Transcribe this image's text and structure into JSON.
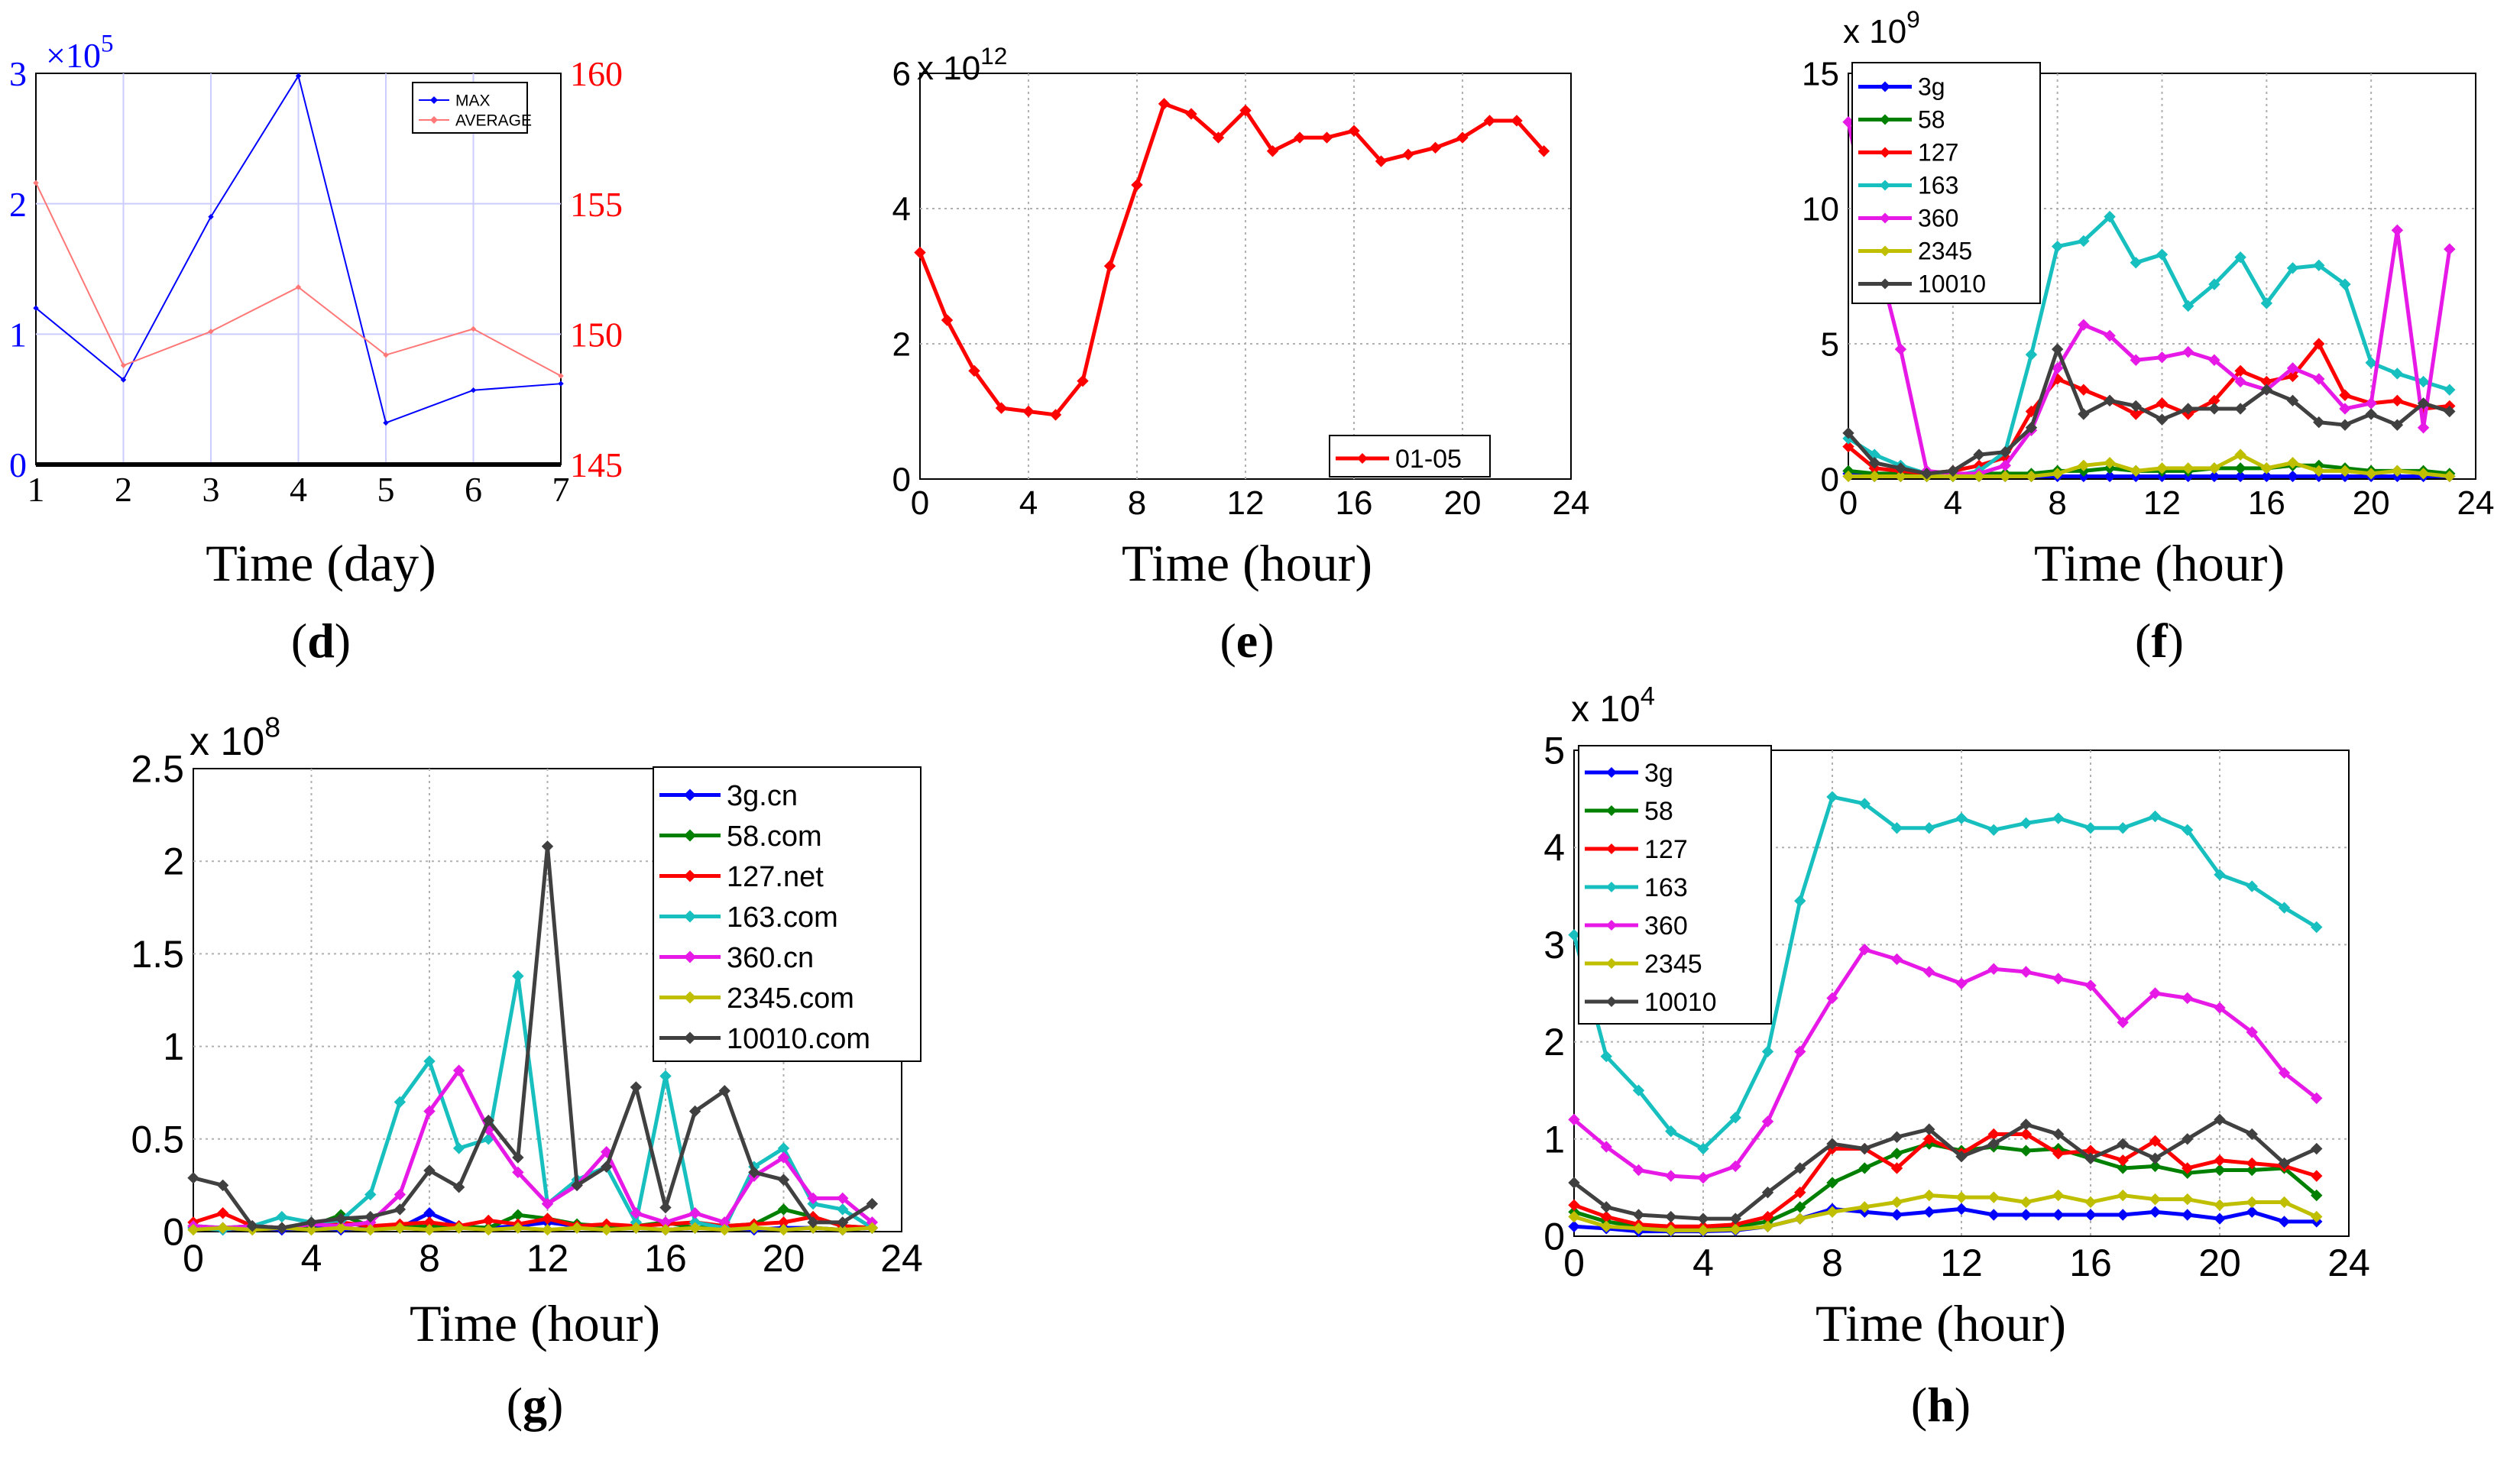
{
  "figure": {
    "panels": [
      {
        "id": "d",
        "letter": "d",
        "paren_open": "(",
        "paren_close": ")",
        "xcaption": "Time (day)"
      },
      {
        "id": "e",
        "letter": "e",
        "paren_open": "(",
        "paren_close": ")",
        "xcaption": "Time (hour)"
      },
      {
        "id": "f",
        "letter": "f",
        "paren_open": "(",
        "paren_close": ")",
        "xcaption": "Time (hour)"
      },
      {
        "id": "g",
        "letter": "g",
        "paren_open": "(",
        "paren_close": ")",
        "xcaption": "Time (hour)"
      },
      {
        "id": "h",
        "letter": "h",
        "paren_open": "(",
        "paren_close": ")",
        "xcaption": "Time (hour)"
      }
    ]
  },
  "colors": {
    "blue": "#0000ff",
    "green": "#008000",
    "red": "#ff0000",
    "cyan": "#17bfbf",
    "magenta": "#e619e6",
    "olive": "#bfbf00",
    "dark": "#404040",
    "avg_red": "#ff7777"
  },
  "chart_data": [
    {
      "id": "d",
      "type": "line",
      "x": [
        1,
        2,
        3,
        4,
        5,
        6,
        7
      ],
      "xlim": [
        1,
        7
      ],
      "xticks": [
        "1",
        "2",
        "3",
        "4",
        "5",
        "6",
        "7"
      ],
      "ylim_left": [
        0,
        3
      ],
      "yticks_left": [
        "0",
        "1",
        "2",
        "3"
      ],
      "left_multiplier": "×10",
      "left_exponent": "5",
      "ylim_right": [
        145,
        160
      ],
      "yticks_right": [
        "145",
        "150",
        "155",
        "160"
      ],
      "legend_position": "top-right",
      "grid": true,
      "series": [
        {
          "name": "MAX",
          "axis": "left",
          "color": "#0000ff",
          "values": [
            1.2,
            0.65,
            1.9,
            2.98,
            0.32,
            0.57,
            0.62
          ]
        },
        {
          "name": "AVERAGE",
          "axis": "right",
          "color": "#ff7777",
          "values": [
            155.8,
            148.8,
            150.1,
            151.8,
            149.2,
            150.2,
            148.4
          ]
        }
      ]
    },
    {
      "id": "e",
      "type": "line",
      "x": [
        0,
        1,
        2,
        3,
        4,
        5,
        6,
        7,
        8,
        9,
        10,
        11,
        12,
        13,
        14,
        15,
        16,
        17,
        18,
        19,
        20,
        21,
        22,
        23
      ],
      "xlim": [
        0,
        24
      ],
      "xticks": [
        "0",
        "4",
        "8",
        "12",
        "16",
        "20",
        "24"
      ],
      "ylim": [
        0,
        6
      ],
      "yticks": [
        "0",
        "2",
        "4",
        "6"
      ],
      "multiplier": "x 10",
      "exponent": "12",
      "legend_position": "bottom-right",
      "grid": true,
      "series": [
        {
          "name": "01-05",
          "color": "#ff0000",
          "values": [
            3.35,
            2.35,
            1.6,
            1.05,
            1.0,
            0.95,
            1.45,
            3.15,
            4.35,
            5.55,
            5.4,
            5.05,
            5.45,
            4.85,
            5.05,
            5.05,
            5.15,
            4.7,
            4.8,
            4.9,
            5.05,
            5.3,
            5.3,
            4.85
          ]
        }
      ]
    },
    {
      "id": "f",
      "type": "line",
      "x": [
        0,
        1,
        2,
        3,
        4,
        5,
        6,
        7,
        8,
        9,
        10,
        11,
        12,
        13,
        14,
        15,
        16,
        17,
        18,
        19,
        20,
        21,
        22,
        23
      ],
      "xlim": [
        0,
        24
      ],
      "xticks": [
        "0",
        "4",
        "8",
        "12",
        "16",
        "20",
        "24"
      ],
      "ylim": [
        0,
        15
      ],
      "yticks": [
        "0",
        "5",
        "10",
        "15"
      ],
      "multiplier": "x 10",
      "exponent": "9",
      "legend_position": "top-left",
      "grid": true,
      "series": [
        {
          "name": "3g",
          "color": "#0000ff",
          "values": [
            0.2,
            0.1,
            0.1,
            0.1,
            0.1,
            0.1,
            0.1,
            0.1,
            0.1,
            0.1,
            0.1,
            0.1,
            0.1,
            0.1,
            0.1,
            0.1,
            0.1,
            0.1,
            0.1,
            0.1,
            0.1,
            0.1,
            0.1,
            0.1
          ]
        },
        {
          "name": "58",
          "color": "#008000",
          "values": [
            0.3,
            0.2,
            0.2,
            0.1,
            0.1,
            0.2,
            0.2,
            0.2,
            0.3,
            0.3,
            0.4,
            0.3,
            0.3,
            0.3,
            0.4,
            0.4,
            0.4,
            0.5,
            0.5,
            0.4,
            0.3,
            0.3,
            0.3,
            0.2
          ]
        },
        {
          "name": "127",
          "color": "#ff0000",
          "values": [
            1.2,
            0.4,
            0.3,
            0.2,
            0.3,
            0.5,
            0.8,
            2.5,
            3.7,
            3.3,
            2.9,
            2.4,
            2.8,
            2.4,
            2.9,
            4.0,
            3.6,
            3.8,
            5.0,
            3.1,
            2.8,
            2.9,
            2.6,
            2.7
          ]
        },
        {
          "name": "163",
          "color": "#17bfbf",
          "values": [
            1.5,
            0.9,
            0.5,
            0.2,
            0.1,
            0.3,
            1.0,
            4.6,
            8.6,
            8.8,
            9.7,
            8.0,
            8.3,
            6.4,
            7.2,
            8.2,
            6.5,
            7.8,
            7.9,
            7.2,
            4.3,
            3.9,
            3.6,
            3.3
          ]
        },
        {
          "name": "360",
          "color": "#e619e6",
          "values": [
            13.2,
            8.6,
            4.8,
            0.3,
            0.2,
            0.2,
            0.5,
            1.8,
            4.1,
            5.7,
            5.3,
            4.4,
            4.5,
            4.7,
            4.4,
            3.6,
            3.3,
            4.1,
            3.7,
            2.6,
            2.8,
            9.2,
            1.9,
            8.5
          ]
        },
        {
          "name": "2345",
          "color": "#bfbf00",
          "values": [
            0.1,
            0.1,
            0.1,
            0.1,
            0.1,
            0.1,
            0.1,
            0.1,
            0.2,
            0.5,
            0.6,
            0.3,
            0.4,
            0.4,
            0.4,
            0.9,
            0.4,
            0.6,
            0.3,
            0.3,
            0.2,
            0.3,
            0.2,
            0.1
          ]
        },
        {
          "name": "10010",
          "color": "#404040",
          "values": [
            1.7,
            0.6,
            0.4,
            0.2,
            0.3,
            0.9,
            1.0,
            1.9,
            4.8,
            2.4,
            2.9,
            2.7,
            2.2,
            2.6,
            2.6,
            2.6,
            3.3,
            2.9,
            2.1,
            2.0,
            2.4,
            2.0,
            2.8,
            2.5
          ]
        }
      ]
    },
    {
      "id": "g",
      "type": "line",
      "x": [
        0,
        1,
        2,
        3,
        4,
        5,
        6,
        7,
        8,
        9,
        10,
        11,
        12,
        13,
        14,
        15,
        16,
        17,
        18,
        19,
        20,
        21,
        22,
        23
      ],
      "xlim": [
        0,
        24
      ],
      "xticks": [
        "0",
        "4",
        "8",
        "12",
        "16",
        "20",
        "24"
      ],
      "ylim": [
        0,
        2.5
      ],
      "yticks": [
        "0",
        "0.5",
        "1",
        "1.5",
        "2",
        "2.5"
      ],
      "multiplier": "x 10",
      "exponent": "8",
      "legend_position": "top-right",
      "grid": true,
      "series": [
        {
          "name": "3g.cn",
          "color": "#0000ff",
          "values": [
            0.02,
            0.01,
            0.02,
            0.01,
            0.02,
            0.01,
            0.02,
            0.02,
            0.1,
            0.03,
            0.02,
            0.03,
            0.05,
            0.03,
            0.02,
            0.02,
            0.01,
            0.02,
            0.02,
            0.01,
            0.02,
            0.02,
            0.01,
            0.02
          ]
        },
        {
          "name": "58.com",
          "color": "#008000",
          "values": [
            0.03,
            0.02,
            0.03,
            0.02,
            0.03,
            0.09,
            0.03,
            0.02,
            0.03,
            0.03,
            0.02,
            0.09,
            0.07,
            0.04,
            0.03,
            0.03,
            0.05,
            0.02,
            0.03,
            0.04,
            0.12,
            0.08,
            0.03,
            0.02
          ]
        },
        {
          "name": "127.net",
          "color": "#ff0000",
          "values": [
            0.05,
            0.1,
            0.03,
            0.02,
            0.04,
            0.05,
            0.03,
            0.04,
            0.05,
            0.03,
            0.06,
            0.04,
            0.07,
            0.03,
            0.04,
            0.03,
            0.04,
            0.05,
            0.03,
            0.04,
            0.05,
            0.08,
            0.03,
            0.02
          ]
        },
        {
          "name": "163.com",
          "color": "#17bfbf",
          "values": [
            0.02,
            0.01,
            0.03,
            0.08,
            0.05,
            0.06,
            0.2,
            0.7,
            0.92,
            0.45,
            0.5,
            1.38,
            0.15,
            0.28,
            0.35,
            0.05,
            0.84,
            0.05,
            0.02,
            0.35,
            0.45,
            0.15,
            0.12,
            0.02
          ]
        },
        {
          "name": "360.cn",
          "color": "#e619e6",
          "values": [
            0.03,
            0.02,
            0.03,
            0.02,
            0.04,
            0.03,
            0.05,
            0.2,
            0.65,
            0.87,
            0.55,
            0.32,
            0.15,
            0.25,
            0.43,
            0.1,
            0.05,
            0.1,
            0.05,
            0.3,
            0.4,
            0.18,
            0.18,
            0.05
          ]
        },
        {
          "name": "2345.com",
          "color": "#bfbf00",
          "values": [
            0.01,
            0.02,
            0.01,
            0.02,
            0.01,
            0.02,
            0.01,
            0.02,
            0.01,
            0.02,
            0.01,
            0.02,
            0.01,
            0.02,
            0.01,
            0.02,
            0.01,
            0.02,
            0.01,
            0.02,
            0.01,
            0.02,
            0.01,
            0.02
          ]
        },
        {
          "name": "10010.com",
          "color": "#404040",
          "values": [
            0.29,
            0.25,
            0.03,
            0.02,
            0.05,
            0.07,
            0.08,
            0.12,
            0.33,
            0.24,
            0.6,
            0.4,
            2.08,
            0.25,
            0.35,
            0.78,
            0.13,
            0.65,
            0.76,
            0.32,
            0.28,
            0.05,
            0.05,
            0.15
          ]
        }
      ]
    },
    {
      "id": "h",
      "type": "line",
      "x": [
        0,
        1,
        2,
        3,
        4,
        5,
        6,
        7,
        8,
        9,
        10,
        11,
        12,
        13,
        14,
        15,
        16,
        17,
        18,
        19,
        20,
        21,
        22,
        23
      ],
      "xlim": [
        0,
        24
      ],
      "xticks": [
        "0",
        "4",
        "8",
        "12",
        "16",
        "20",
        "24"
      ],
      "ylim": [
        0,
        5
      ],
      "yticks": [
        "0",
        "1",
        "2",
        "3",
        "4",
        "5"
      ],
      "multiplier": "x 10",
      "exponent": "4",
      "legend_position": "top-left",
      "grid": true,
      "series": [
        {
          "name": "3g",
          "color": "#0000ff",
          "values": [
            0.1,
            0.08,
            0.05,
            0.05,
            0.05,
            0.06,
            0.1,
            0.18,
            0.28,
            0.25,
            0.22,
            0.25,
            0.28,
            0.22,
            0.22,
            0.22,
            0.22,
            0.22,
            0.25,
            0.22,
            0.18,
            0.25,
            0.15,
            0.15
          ]
        },
        {
          "name": "58",
          "color": "#008000",
          "values": [
            0.25,
            0.15,
            0.1,
            0.08,
            0.08,
            0.1,
            0.15,
            0.3,
            0.55,
            0.7,
            0.85,
            0.95,
            0.88,
            0.92,
            0.88,
            0.9,
            0.8,
            0.7,
            0.72,
            0.65,
            0.68,
            0.68,
            0.7,
            0.42
          ]
        },
        {
          "name": "127",
          "color": "#ff0000",
          "values": [
            0.32,
            0.2,
            0.12,
            0.1,
            0.1,
            0.12,
            0.2,
            0.45,
            0.9,
            0.9,
            0.7,
            1.0,
            0.85,
            1.05,
            1.05,
            0.85,
            0.88,
            0.78,
            0.98,
            0.7,
            0.78,
            0.75,
            0.72,
            0.62
          ]
        },
        {
          "name": "163",
          "color": "#17bfbf",
          "values": [
            3.1,
            1.85,
            1.5,
            1.08,
            0.9,
            1.22,
            1.9,
            3.45,
            4.52,
            4.45,
            4.2,
            4.2,
            4.3,
            4.18,
            4.25,
            4.3,
            4.2,
            4.2,
            4.32,
            4.18,
            3.72,
            3.6,
            3.38,
            3.18
          ]
        },
        {
          "name": "360",
          "color": "#e619e6",
          "values": [
            1.2,
            0.92,
            0.68,
            0.62,
            0.6,
            0.72,
            1.18,
            1.9,
            2.45,
            2.95,
            2.85,
            2.72,
            2.6,
            2.75,
            2.72,
            2.65,
            2.58,
            2.2,
            2.5,
            2.45,
            2.35,
            2.1,
            1.68,
            1.42
          ]
        },
        {
          "name": "2345",
          "color": "#bfbf00",
          "values": [
            0.2,
            0.1,
            0.08,
            0.06,
            0.06,
            0.07,
            0.1,
            0.18,
            0.25,
            0.3,
            0.35,
            0.42,
            0.4,
            0.4,
            0.35,
            0.42,
            0.35,
            0.42,
            0.38,
            0.38,
            0.32,
            0.35,
            0.35,
            0.2
          ]
        },
        {
          "name": "10010",
          "color": "#404040",
          "values": [
            0.55,
            0.3,
            0.22,
            0.2,
            0.18,
            0.18,
            0.45,
            0.7,
            0.95,
            0.9,
            1.02,
            1.1,
            0.82,
            0.95,
            1.15,
            1.05,
            0.8,
            0.95,
            0.8,
            1.0,
            1.2,
            1.05,
            0.75,
            0.9
          ]
        }
      ]
    }
  ]
}
